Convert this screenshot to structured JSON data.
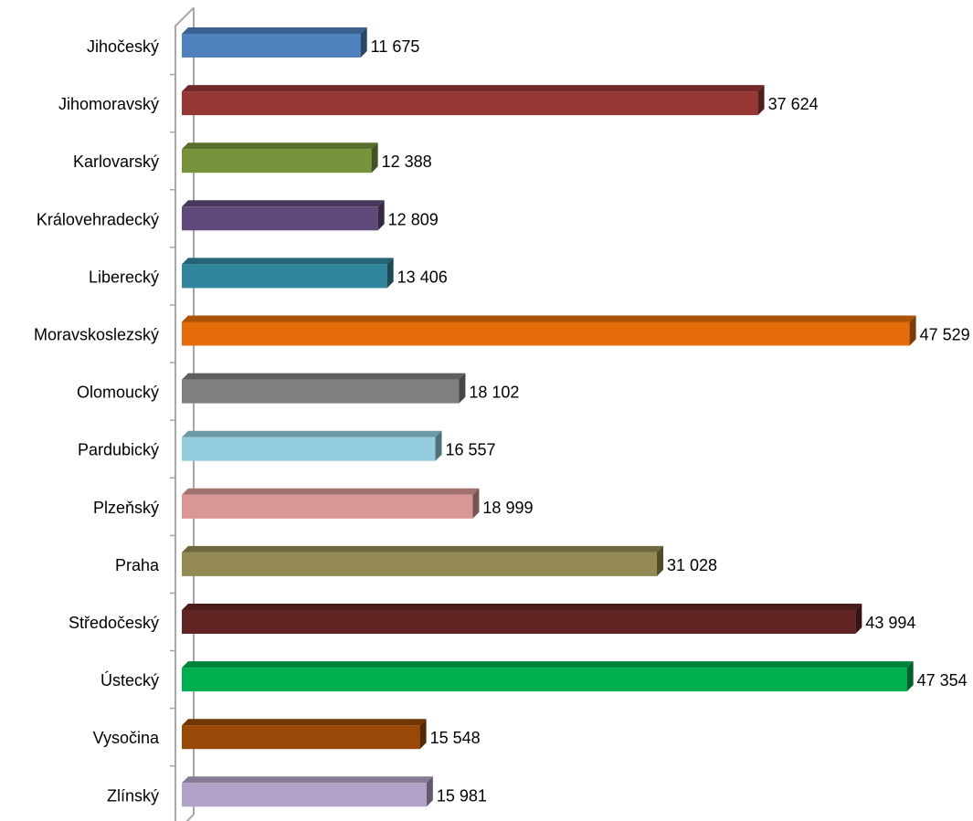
{
  "chart_data": {
    "type": "bar",
    "orientation": "horizontal",
    "style": "3d",
    "grid": false,
    "legend": "none",
    "xlim": [
      0,
      50000
    ],
    "categories": [
      "Jihočeský",
      "Jihomoravský",
      "Karlovarský",
      "Královehradecký",
      "Liberecký",
      "Moravskoslezský",
      "Olomoucký",
      "Pardubický",
      "Plzeňský",
      "Praha",
      "Středočeský",
      "Ústecký",
      "Vysočina",
      "Zlínský"
    ],
    "values": [
      11675,
      37624,
      12388,
      12809,
      13406,
      47529,
      18102,
      16557,
      18999,
      31028,
      43994,
      47354,
      15548,
      15981
    ],
    "value_labels": [
      "11 675",
      "37 624",
      "12 388",
      "12 809",
      "13 406",
      "47 529",
      "18 102",
      "16 557",
      "18 999",
      "31 028",
      "43 994",
      "47 354",
      "15 548",
      "15 981"
    ],
    "colors": [
      "#4F81BD",
      "#953735",
      "#77933C",
      "#604A7B",
      "#31859C",
      "#E46C0A",
      "#7F7F7F",
      "#93CDDD",
      "#D99694",
      "#948A54",
      "#632523",
      "#00B050",
      "#984807",
      "#B3A2C7"
    ],
    "axis_color": "#A6A6A6"
  }
}
